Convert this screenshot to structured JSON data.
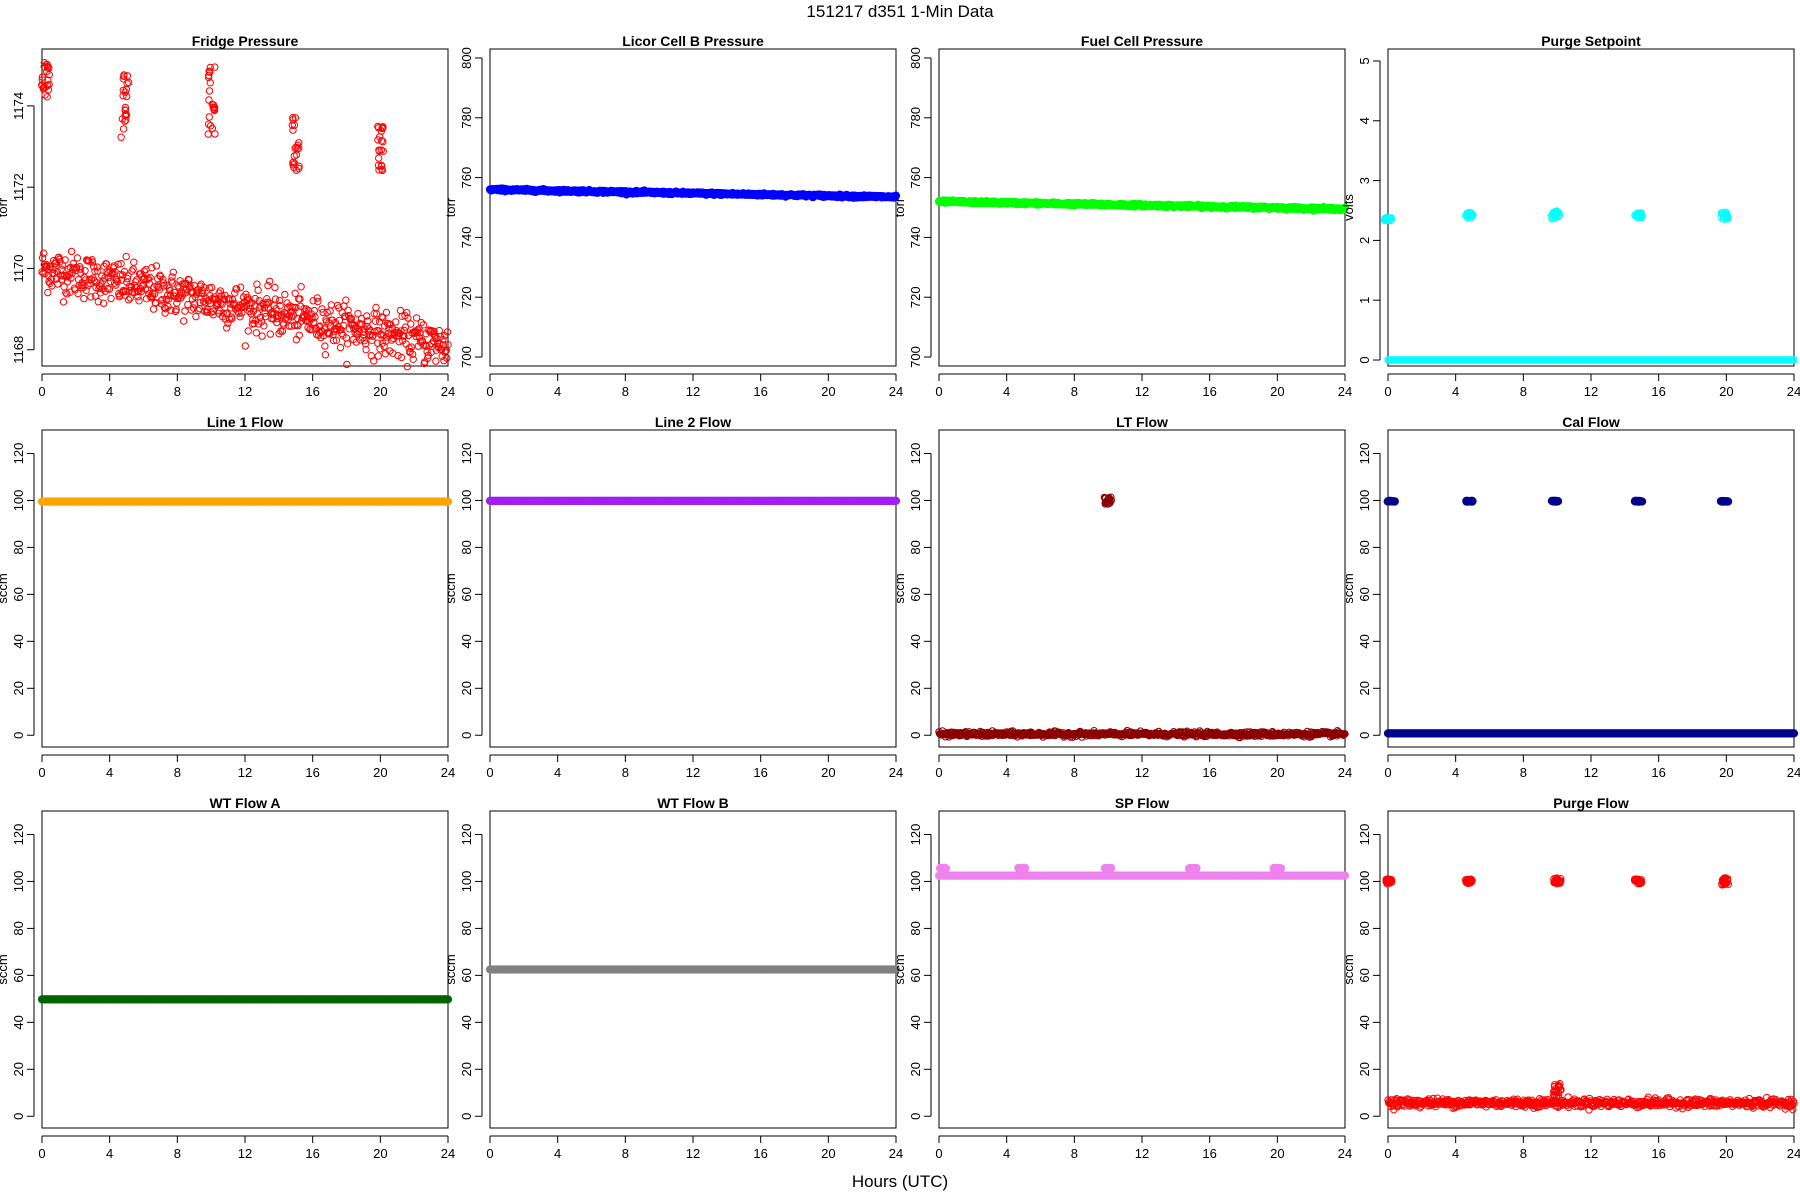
{
  "figure": {
    "title": "151217   d351   1-Min Data",
    "xlabel": "Hours (UTC)"
  },
  "chart_data": [
    {
      "type": "scatter",
      "title": "Fridge Pressure",
      "ylabel": "torr",
      "xlim": [
        0,
        24
      ],
      "ylim": [
        1167.6,
        1175.4
      ],
      "xticks": [
        0,
        4,
        8,
        12,
        16,
        20,
        24
      ],
      "yticks": [
        1168,
        1170,
        1172,
        1174
      ],
      "color": "#ff0000",
      "marker": "open-circle",
      "trend": {
        "x_start": 0,
        "x_end": 24,
        "y_start": 1170.0,
        "y_end": 1168.1,
        "spread": 0.55
      },
      "bursts": [
        {
          "x": 0.2,
          "ymin": 1174.2,
          "ymax": 1175.2
        },
        {
          "x": 4.9,
          "ymin": 1173.2,
          "ymax": 1174.9
        },
        {
          "x": 10.0,
          "ymin": 1173.3,
          "ymax": 1175.2
        },
        {
          "x": 15.0,
          "ymin": 1172.4,
          "ymax": 1173.9
        },
        {
          "x": 20.0,
          "ymin": 1172.4,
          "ymax": 1173.5
        }
      ]
    },
    {
      "type": "scatter",
      "title": "Licor Cell B Pressure",
      "ylabel": "torr",
      "xlim": [
        0,
        24
      ],
      "ylim": [
        697,
        803
      ],
      "xticks": [
        0,
        4,
        8,
        12,
        16,
        20,
        24
      ],
      "yticks": [
        700,
        720,
        740,
        760,
        780,
        800
      ],
      "color": "#0000ff",
      "marker": "filled",
      "trend": {
        "x_start": 0,
        "x_end": 24,
        "y_start": 756,
        "y_end": 753.5,
        "spread": 0.4
      }
    },
    {
      "type": "scatter",
      "title": "Fuel Cell Pressure",
      "ylabel": "torr",
      "xlim": [
        0,
        24
      ],
      "ylim": [
        697,
        803
      ],
      "xticks": [
        0,
        4,
        8,
        12,
        16,
        20,
        24
      ],
      "yticks": [
        700,
        720,
        740,
        760,
        780,
        800
      ],
      "color": "#00ff00",
      "marker": "filled",
      "trend": {
        "x_start": 0,
        "x_end": 24,
        "y_start": 752,
        "y_end": 749.5,
        "spread": 0.4
      }
    },
    {
      "type": "scatter",
      "title": "Purge Setpoint",
      "ylabel": "volts",
      "xlim": [
        0,
        24
      ],
      "ylim": [
        -0.1,
        5.2
      ],
      "xticks": [
        0,
        4,
        8,
        12,
        16,
        20,
        24
      ],
      "yticks": [
        0,
        1,
        2,
        3,
        4,
        5
      ],
      "color": "#00ffff",
      "marker": "open-circle",
      "trend": {
        "x_start": 0,
        "x_end": 24,
        "y_start": 0,
        "y_end": 0,
        "spread": 0
      },
      "bursts": [
        {
          "x": 0.0,
          "ymin": 2.33,
          "ymax": 2.38
        },
        {
          "x": 4.8,
          "ymin": 2.38,
          "ymax": 2.47
        },
        {
          "x": 9.9,
          "ymin": 2.35,
          "ymax": 2.5
        },
        {
          "x": 14.8,
          "ymin": 2.38,
          "ymax": 2.46
        },
        {
          "x": 19.9,
          "ymin": 2.35,
          "ymax": 2.48
        }
      ]
    },
    {
      "type": "scatter",
      "title": "Line 1 Flow",
      "ylabel": "sccm",
      "xlim": [
        0,
        24
      ],
      "ylim": [
        -5,
        130
      ],
      "xticks": [
        0,
        4,
        8,
        12,
        16,
        20,
        24
      ],
      "yticks": [
        0,
        20,
        40,
        60,
        80,
        100,
        120
      ],
      "color": "#ffa500",
      "marker": "filled",
      "trend": {
        "x_start": 0,
        "x_end": 24,
        "y_start": 99.5,
        "y_end": 99.5,
        "spread": 0
      }
    },
    {
      "type": "scatter",
      "title": "Line 2 Flow",
      "ylabel": "sccm",
      "xlim": [
        0,
        24
      ],
      "ylim": [
        -5,
        130
      ],
      "xticks": [
        0,
        4,
        8,
        12,
        16,
        20,
        24
      ],
      "yticks": [
        0,
        20,
        40,
        60,
        80,
        100,
        120
      ],
      "color": "#a020f0",
      "marker": "filled",
      "trend": {
        "x_start": 0,
        "x_end": 24,
        "y_start": 99.8,
        "y_end": 99.8,
        "spread": 0
      }
    },
    {
      "type": "scatter",
      "title": "LT Flow",
      "ylabel": "sccm",
      "xlim": [
        0,
        24
      ],
      "ylim": [
        -5,
        130
      ],
      "xticks": [
        0,
        4,
        8,
        12,
        16,
        20,
        24
      ],
      "yticks": [
        0,
        20,
        40,
        60,
        80,
        100,
        120
      ],
      "color": "#8b0000",
      "marker": "open-circle",
      "trend": {
        "x_start": 0,
        "x_end": 24,
        "y_start": 0.5,
        "y_end": 0.5,
        "spread": 1.0
      },
      "bursts": [
        {
          "x": 10.0,
          "ymin": 98.5,
          "ymax": 101.5
        }
      ]
    },
    {
      "type": "scatter",
      "title": "Cal Flow",
      "ylabel": "sccm",
      "xlim": [
        0,
        24
      ],
      "ylim": [
        -5,
        130
      ],
      "xticks": [
        0,
        4,
        8,
        12,
        16,
        20,
        24
      ],
      "yticks": [
        0,
        20,
        40,
        60,
        80,
        100,
        120
      ],
      "color": "#00008b",
      "marker": "filled",
      "trend": {
        "x_start": 0,
        "x_end": 24,
        "y_start": 0.8,
        "y_end": 0.8,
        "spread": 0
      },
      "bursts": [
        {
          "x": 0.2,
          "ymin": 99.5,
          "ymax": 99.8
        },
        {
          "x": 4.8,
          "ymin": 99.5,
          "ymax": 99.8
        },
        {
          "x": 9.9,
          "ymin": 99.5,
          "ymax": 99.8
        },
        {
          "x": 14.8,
          "ymin": 99.5,
          "ymax": 99.8
        },
        {
          "x": 19.9,
          "ymin": 99.5,
          "ymax": 99.8
        }
      ]
    },
    {
      "type": "scatter",
      "title": "WT Flow A",
      "ylabel": "sccm",
      "xlim": [
        0,
        24
      ],
      "ylim": [
        -5,
        130
      ],
      "xticks": [
        0,
        4,
        8,
        12,
        16,
        20,
        24
      ],
      "yticks": [
        0,
        20,
        40,
        60,
        80,
        100,
        120
      ],
      "color": "#006400",
      "marker": "filled",
      "trend": {
        "x_start": 0,
        "x_end": 24,
        "y_start": 49.8,
        "y_end": 49.8,
        "spread": 0
      }
    },
    {
      "type": "scatter",
      "title": "WT Flow B",
      "ylabel": "sccm",
      "xlim": [
        0,
        24
      ],
      "ylim": [
        -5,
        130
      ],
      "xticks": [
        0,
        4,
        8,
        12,
        16,
        20,
        24
      ],
      "yticks": [
        0,
        20,
        40,
        60,
        80,
        100,
        120
      ],
      "color": "#808080",
      "marker": "filled",
      "trend": {
        "x_start": 0,
        "x_end": 24,
        "y_start": 62.5,
        "y_end": 62.5,
        "spread": 0
      }
    },
    {
      "type": "scatter",
      "title": "SP Flow",
      "ylabel": "sccm",
      "xlim": [
        0,
        24
      ],
      "ylim": [
        -5,
        130
      ],
      "xticks": [
        0,
        4,
        8,
        12,
        16,
        20,
        24
      ],
      "yticks": [
        0,
        20,
        40,
        60,
        80,
        100,
        120
      ],
      "color": "#ee82ee",
      "marker": "filled",
      "trend": {
        "x_start": 0,
        "x_end": 24,
        "y_start": 102.5,
        "y_end": 102.5,
        "spread": 0
      },
      "bursts": [
        {
          "x": 0.2,
          "ymin": 105.3,
          "ymax": 105.8
        },
        {
          "x": 4.9,
          "ymin": 105.3,
          "ymax": 105.8
        },
        {
          "x": 10.0,
          "ymin": 105.3,
          "ymax": 105.8
        },
        {
          "x": 15.0,
          "ymin": 105.3,
          "ymax": 105.8
        },
        {
          "x": 20.0,
          "ymin": 105.3,
          "ymax": 105.8
        }
      ]
    },
    {
      "type": "scatter",
      "title": "Purge Flow",
      "ylabel": "sccm",
      "xlim": [
        0,
        24
      ],
      "ylim": [
        -5,
        130
      ],
      "xticks": [
        0,
        4,
        8,
        12,
        16,
        20,
        24
      ],
      "yticks": [
        0,
        20,
        40,
        60,
        80,
        100,
        120
      ],
      "color": "#ff0000",
      "marker": "open-circle",
      "trend": {
        "x_start": 0,
        "x_end": 24,
        "y_start": 5.8,
        "y_end": 5.6,
        "spread": 1.8
      },
      "bursts": [
        {
          "x": 0.1,
          "ymin": 99.0,
          "ymax": 101.0
        },
        {
          "x": 4.8,
          "ymin": 99.0,
          "ymax": 101.0
        },
        {
          "x": 10.0,
          "ymin": 98.5,
          "ymax": 101.5
        },
        {
          "x": 14.8,
          "ymin": 99.0,
          "ymax": 101.0
        },
        {
          "x": 19.9,
          "ymin": 98.5,
          "ymax": 101.5
        },
        {
          "x": 10.0,
          "ymin": 8.0,
          "ymax": 14.0
        }
      ]
    }
  ]
}
